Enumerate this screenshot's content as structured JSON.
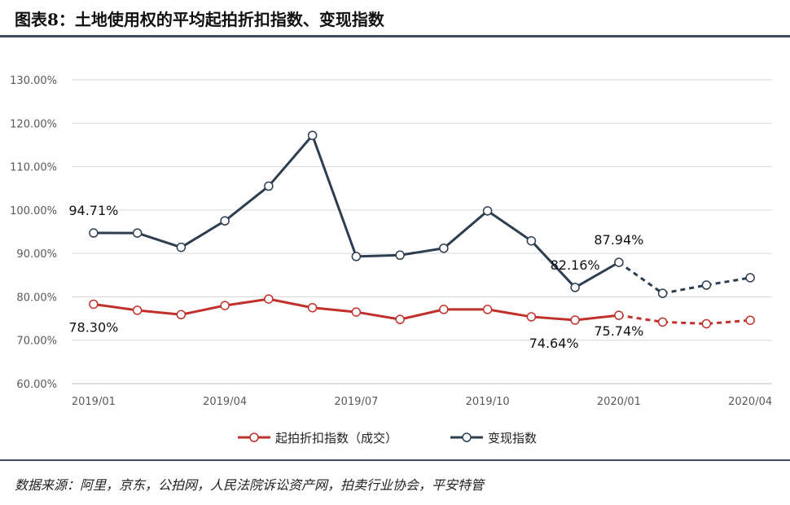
{
  "header": {
    "title": "图表8：土地使用权的平均起拍折扣指数、变现指数"
  },
  "footer": {
    "source": "数据来源：阿里，京东，公拍网，人民法院诉讼资产网，拍卖行业协会，平安特管"
  },
  "colors": {
    "series1": "#c0312b",
    "series2": "#2d3e50",
    "grid": "#d9d9d9",
    "rule": "#3f4a5c"
  },
  "chart_data": {
    "type": "line",
    "x_tick_labels": [
      "2019/01",
      "2019/04",
      "2019/07",
      "2019/10",
      "2020/01",
      "2020/04"
    ],
    "x": [
      "2019/01",
      "2019/02",
      "2019/03",
      "2019/04",
      "2019/05",
      "2019/06",
      "2019/07",
      "2019/08",
      "2019/09",
      "2019/10",
      "2019/11",
      "2019/12",
      "2020/01",
      "2020/02",
      "2020/03",
      "2020/04"
    ],
    "y_tick_labels": [
      "60.00%",
      "70.00%",
      "80.00%",
      "90.00%",
      "100.00%",
      "110.00%",
      "120.00%",
      "130.00%"
    ],
    "ylim": [
      60,
      135
    ],
    "grid": true,
    "legend_position": "bottom",
    "series": [
      {
        "name": "起拍折扣指数（成交）",
        "color": "#c0312b",
        "values": [
          78.3,
          76.9,
          75.9,
          78.0,
          79.5,
          77.5,
          76.5,
          74.8,
          77.1,
          77.1,
          75.4,
          74.64,
          75.74,
          74.2,
          73.8,
          74.6
        ],
        "dashed_from_index": 12
      },
      {
        "name": "变现指数",
        "color": "#2d3e50",
        "values": [
          94.71,
          94.7,
          91.4,
          97.5,
          105.5,
          117.2,
          89.3,
          89.6,
          91.2,
          99.8,
          92.9,
          82.16,
          87.94,
          80.8,
          82.7,
          84.4
        ],
        "dashed_from_index": 12
      }
    ],
    "data_labels": [
      {
        "series": 1,
        "index": 0,
        "text": "94.71%"
      },
      {
        "series": 0,
        "index": 0,
        "text": "78.30%"
      },
      {
        "series": 1,
        "index": 11,
        "text": "82.16%"
      },
      {
        "series": 1,
        "index": 12,
        "text": "87.94%"
      },
      {
        "series": 0,
        "index": 11,
        "text": "74.64%"
      },
      {
        "series": 0,
        "index": 12,
        "text": "75.74%"
      }
    ]
  }
}
